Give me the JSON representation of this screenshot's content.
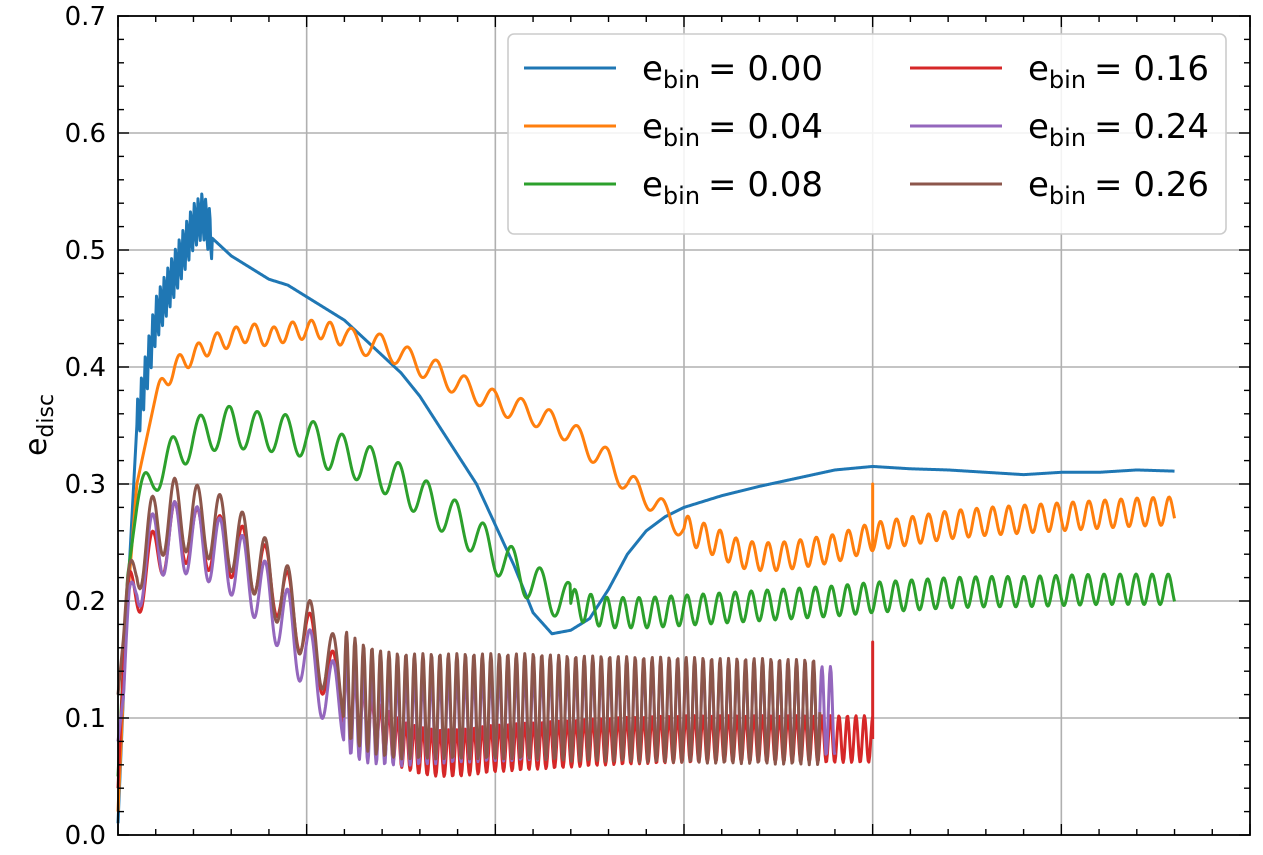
{
  "chart_data": {
    "type": "line",
    "title": "",
    "xlabel": "",
    "ylabel": {
      "main": "e",
      "sub": "disc"
    },
    "xlim": [
      0,
      6
    ],
    "ylim": [
      0,
      0.7
    ],
    "x_major_ticks": [
      0,
      1,
      2,
      3,
      4,
      5,
      6
    ],
    "y_ticks": [
      0.0,
      0.1,
      0.2,
      0.3,
      0.4,
      0.5,
      0.6,
      0.7
    ],
    "y_tick_labels": [
      "0.0",
      "0.1",
      "0.2",
      "0.3",
      "0.4",
      "0.5",
      "0.6",
      "0.7"
    ],
    "grid": true,
    "legend": {
      "location": "top-right",
      "columns": 2
    },
    "series": [
      {
        "name": "e_bin = 0.00",
        "label_main": "e",
        "label_sub": "bin",
        "label_value": "= 0.00",
        "color": "#1f77b4",
        "points": [
          [
            0,
            0.01
          ],
          [
            0.05,
            0.2
          ],
          [
            0.1,
            0.35
          ],
          [
            0.2,
            0.44
          ],
          [
            0.3,
            0.48
          ],
          [
            0.4,
            0.52
          ],
          [
            0.45,
            0.53
          ],
          [
            0.5,
            0.51
          ],
          [
            0.6,
            0.495
          ],
          [
            0.8,
            0.475
          ],
          [
            0.9,
            0.47
          ],
          [
            1.0,
            0.46
          ],
          [
            1.1,
            0.45
          ],
          [
            1.2,
            0.44
          ],
          [
            1.3,
            0.425
          ],
          [
            1.4,
            0.41
          ],
          [
            1.5,
            0.395
          ],
          [
            1.6,
            0.375
          ],
          [
            1.7,
            0.35
          ],
          [
            1.8,
            0.325
          ],
          [
            1.9,
            0.3
          ],
          [
            2.0,
            0.265
          ],
          [
            2.1,
            0.23
          ],
          [
            2.2,
            0.19
          ],
          [
            2.3,
            0.172
          ],
          [
            2.4,
            0.175
          ],
          [
            2.5,
            0.185
          ],
          [
            2.6,
            0.21
          ],
          [
            2.7,
            0.24
          ],
          [
            2.8,
            0.26
          ],
          [
            2.9,
            0.272
          ],
          [
            3.0,
            0.28
          ],
          [
            3.2,
            0.29
          ],
          [
            3.4,
            0.298
          ],
          [
            3.6,
            0.305
          ],
          [
            3.8,
            0.312
          ],
          [
            4.0,
            0.315
          ],
          [
            4.2,
            0.313
          ],
          [
            4.4,
            0.312
          ],
          [
            4.6,
            0.31
          ],
          [
            4.8,
            0.308
          ],
          [
            5.0,
            0.31
          ],
          [
            5.2,
            0.31
          ],
          [
            5.4,
            0.312
          ],
          [
            5.6,
            0.311
          ]
        ],
        "oscillation": [
          {
            "x_range": [
              0.1,
              0.5
            ],
            "amplitude": 0.02,
            "period": 0.02
          }
        ]
      },
      {
        "name": "e_bin = 0.04",
        "label_main": "e",
        "label_sub": "bin",
        "label_value": "= 0.04",
        "color": "#ff7f0e",
        "points": [
          [
            0,
            0.02
          ],
          [
            0.05,
            0.2
          ],
          [
            0.1,
            0.3
          ],
          [
            0.2,
            0.375
          ],
          [
            0.3,
            0.4
          ],
          [
            0.4,
            0.41
          ],
          [
            0.5,
            0.42
          ],
          [
            0.6,
            0.425
          ],
          [
            0.7,
            0.43
          ],
          [
            0.8,
            0.425
          ],
          [
            0.9,
            0.43
          ],
          [
            1.0,
            0.432
          ],
          [
            1.1,
            0.432
          ],
          [
            1.2,
            0.425
          ],
          [
            1.3,
            0.42
          ],
          [
            1.4,
            0.418
          ],
          [
            1.5,
            0.41
          ],
          [
            1.6,
            0.402
          ],
          [
            1.7,
            0.395
          ],
          [
            1.8,
            0.385
          ],
          [
            1.9,
            0.378
          ],
          [
            2.0,
            0.37
          ],
          [
            2.2,
            0.36
          ],
          [
            2.4,
            0.345
          ],
          [
            2.5,
            0.33
          ],
          [
            2.6,
            0.32
          ],
          [
            2.7,
            0.3
          ],
          [
            2.8,
            0.29
          ],
          [
            2.9,
            0.275
          ],
          [
            3.0,
            0.262
          ],
          [
            3.1,
            0.255
          ],
          [
            3.2,
            0.248
          ],
          [
            3.3,
            0.24
          ],
          [
            3.4,
            0.238
          ],
          [
            3.5,
            0.238
          ],
          [
            3.6,
            0.24
          ],
          [
            3.8,
            0.245
          ],
          [
            4.0,
            0.255
          ],
          [
            4.2,
            0.26
          ],
          [
            4.4,
            0.265
          ],
          [
            4.6,
            0.268
          ],
          [
            4.8,
            0.27
          ],
          [
            5.0,
            0.272
          ],
          [
            5.2,
            0.274
          ],
          [
            5.4,
            0.276
          ],
          [
            5.6,
            0.277
          ]
        ],
        "spikes": [
          {
            "x": 4.0,
            "y": 0.3
          }
        ],
        "oscillation": [
          {
            "x_range": [
              0.2,
              1.2
            ],
            "amplitude": 0.008,
            "period": 0.1
          },
          {
            "x_range": [
              1.2,
              3.0
            ],
            "amplitude": 0.01,
            "period": 0.15
          },
          {
            "x_range": [
              3.0,
              5.65
            ],
            "amplitude": 0.012,
            "period": 0.085
          }
        ]
      },
      {
        "name": "e_bin = 0.08",
        "label_main": "e",
        "label_sub": "bin",
        "label_value": "= 0.08",
        "color": "#2ca02c",
        "points": [
          [
            0,
            0.05
          ],
          [
            0.05,
            0.22
          ],
          [
            0.1,
            0.28
          ],
          [
            0.2,
            0.31
          ],
          [
            0.3,
            0.325
          ],
          [
            0.4,
            0.34
          ],
          [
            0.5,
            0.345
          ],
          [
            0.6,
            0.35
          ],
          [
            0.7,
            0.345
          ],
          [
            0.8,
            0.345
          ],
          [
            0.9,
            0.342
          ],
          [
            1.0,
            0.34
          ],
          [
            1.1,
            0.33
          ],
          [
            1.2,
            0.325
          ],
          [
            1.3,
            0.318
          ],
          [
            1.4,
            0.31
          ],
          [
            1.5,
            0.3
          ],
          [
            1.6,
            0.29
          ],
          [
            1.7,
            0.278
          ],
          [
            1.8,
            0.268
          ],
          [
            1.9,
            0.255
          ],
          [
            2.0,
            0.24
          ],
          [
            2.1,
            0.228
          ],
          [
            2.2,
            0.215
          ],
          [
            2.3,
            0.205
          ],
          [
            2.4,
            0.198
          ],
          [
            2.5,
            0.193
          ],
          [
            2.6,
            0.19
          ],
          [
            2.8,
            0.19
          ],
          [
            3.0,
            0.192
          ],
          [
            3.2,
            0.194
          ],
          [
            3.4,
            0.196
          ],
          [
            3.6,
            0.198
          ],
          [
            3.8,
            0.2
          ],
          [
            4.0,
            0.203
          ],
          [
            4.2,
            0.205
          ],
          [
            4.4,
            0.207
          ],
          [
            4.6,
            0.208
          ],
          [
            4.8,
            0.208
          ],
          [
            5.0,
            0.209
          ],
          [
            5.2,
            0.21
          ],
          [
            5.4,
            0.21
          ],
          [
            5.6,
            0.21
          ]
        ],
        "oscillation": [
          {
            "x_range": [
              0.1,
              2.4
            ],
            "amplitude": 0.017,
            "period": 0.15
          },
          {
            "x_range": [
              2.4,
              5.65
            ],
            "amplitude": 0.013,
            "period": 0.085
          }
        ]
      },
      {
        "name": "e_bin = 0.16",
        "label_main": "e",
        "label_sub": "bin",
        "label_value": "= 0.16",
        "color": "#d62728",
        "points": [
          [
            0,
            0.04
          ],
          [
            0.03,
            0.15
          ],
          [
            0.06,
            0.2
          ],
          [
            0.1,
            0.21
          ],
          [
            0.2,
            0.24
          ],
          [
            0.3,
            0.26
          ],
          [
            0.4,
            0.255
          ],
          [
            0.5,
            0.25
          ],
          [
            0.6,
            0.245
          ],
          [
            0.7,
            0.235
          ],
          [
            0.8,
            0.22
          ],
          [
            0.9,
            0.2
          ],
          [
            1.0,
            0.17
          ],
          [
            1.1,
            0.14
          ],
          [
            1.2,
            0.12
          ],
          [
            1.3,
            0.105
          ],
          [
            1.4,
            0.09
          ],
          [
            1.5,
            0.078
          ],
          [
            1.6,
            0.072
          ],
          [
            1.7,
            0.07
          ],
          [
            1.8,
            0.07
          ],
          [
            1.9,
            0.072
          ],
          [
            2.0,
            0.074
          ],
          [
            2.2,
            0.076
          ],
          [
            2.4,
            0.078
          ],
          [
            2.6,
            0.08
          ],
          [
            2.8,
            0.081
          ],
          [
            3.0,
            0.082
          ],
          [
            3.2,
            0.082
          ],
          [
            3.4,
            0.082
          ],
          [
            3.6,
            0.082
          ],
          [
            3.8,
            0.082
          ],
          [
            4.0,
            0.082
          ]
        ],
        "spikes": [
          {
            "x": 4.0,
            "y": 0.165
          }
        ],
        "oscillation": [
          {
            "x_range": [
              0.03,
              1.2
            ],
            "amplitude": 0.025,
            "period": 0.12
          },
          {
            "x_range": [
              1.2,
              4.0
            ],
            "amplitude": 0.02,
            "period": 0.045
          }
        ]
      },
      {
        "name": "e_bin = 0.24",
        "label_main": "e",
        "label_sub": "bin",
        "label_value": "= 0.24",
        "color": "#9467bd",
        "points": [
          [
            0,
            0.08
          ],
          [
            0.03,
            0.12
          ],
          [
            0.06,
            0.18
          ],
          [
            0.1,
            0.22
          ],
          [
            0.2,
            0.25
          ],
          [
            0.3,
            0.255
          ],
          [
            0.4,
            0.252
          ],
          [
            0.5,
            0.245
          ],
          [
            0.6,
            0.235
          ],
          [
            0.7,
            0.22
          ],
          [
            0.8,
            0.2
          ],
          [
            0.9,
            0.18
          ],
          [
            1.0,
            0.15
          ],
          [
            1.1,
            0.125
          ],
          [
            1.2,
            0.11
          ],
          [
            1.3,
            0.1
          ],
          [
            1.4,
            0.098
          ],
          [
            1.5,
            0.097
          ],
          [
            1.6,
            0.098
          ],
          [
            1.8,
            0.1
          ],
          [
            2.0,
            0.101
          ],
          [
            2.2,
            0.102
          ],
          [
            2.4,
            0.103
          ],
          [
            2.6,
            0.104
          ],
          [
            2.8,
            0.105
          ],
          [
            3.0,
            0.106
          ],
          [
            3.2,
            0.106
          ],
          [
            3.4,
            0.106
          ],
          [
            3.6,
            0.106
          ],
          [
            3.8,
            0.106
          ]
        ],
        "oscillation": [
          {
            "x_range": [
              0.03,
              1.2
            ],
            "amplitude": 0.03,
            "period": 0.12
          },
          {
            "x_range": [
              1.2,
              3.82
            ],
            "amplitude": 0.038,
            "period": 0.045
          }
        ]
      },
      {
        "name": "e_bin = 0.26",
        "label_main": "e",
        "label_sub": "bin",
        "label_value": "= 0.26",
        "color": "#8c564b",
        "points": [
          [
            0,
            0.12
          ],
          [
            0.03,
            0.17
          ],
          [
            0.06,
            0.2
          ],
          [
            0.1,
            0.235
          ],
          [
            0.2,
            0.265
          ],
          [
            0.3,
            0.275
          ],
          [
            0.4,
            0.27
          ],
          [
            0.5,
            0.265
          ],
          [
            0.6,
            0.255
          ],
          [
            0.7,
            0.24
          ],
          [
            0.8,
            0.22
          ],
          [
            0.9,
            0.2
          ],
          [
            1.0,
            0.175
          ],
          [
            1.1,
            0.15
          ],
          [
            1.2,
            0.13
          ],
          [
            1.3,
            0.118
          ],
          [
            1.4,
            0.112
          ],
          [
            1.5,
            0.11
          ],
          [
            1.6,
            0.11
          ],
          [
            1.8,
            0.11
          ],
          [
            2.0,
            0.11
          ],
          [
            2.2,
            0.11
          ],
          [
            2.4,
            0.108
          ],
          [
            2.6,
            0.108
          ],
          [
            2.8,
            0.107
          ],
          [
            3.0,
            0.107
          ],
          [
            3.2,
            0.106
          ],
          [
            3.4,
            0.106
          ],
          [
            3.6,
            0.105
          ],
          [
            3.72,
            0.105
          ]
        ],
        "oscillation": [
          {
            "x_range": [
              0.03,
              1.2
            ],
            "amplitude": 0.03,
            "period": 0.12
          },
          {
            "x_range": [
              1.2,
              3.72
            ],
            "amplitude": 0.045,
            "period": 0.045
          }
        ]
      }
    ]
  }
}
